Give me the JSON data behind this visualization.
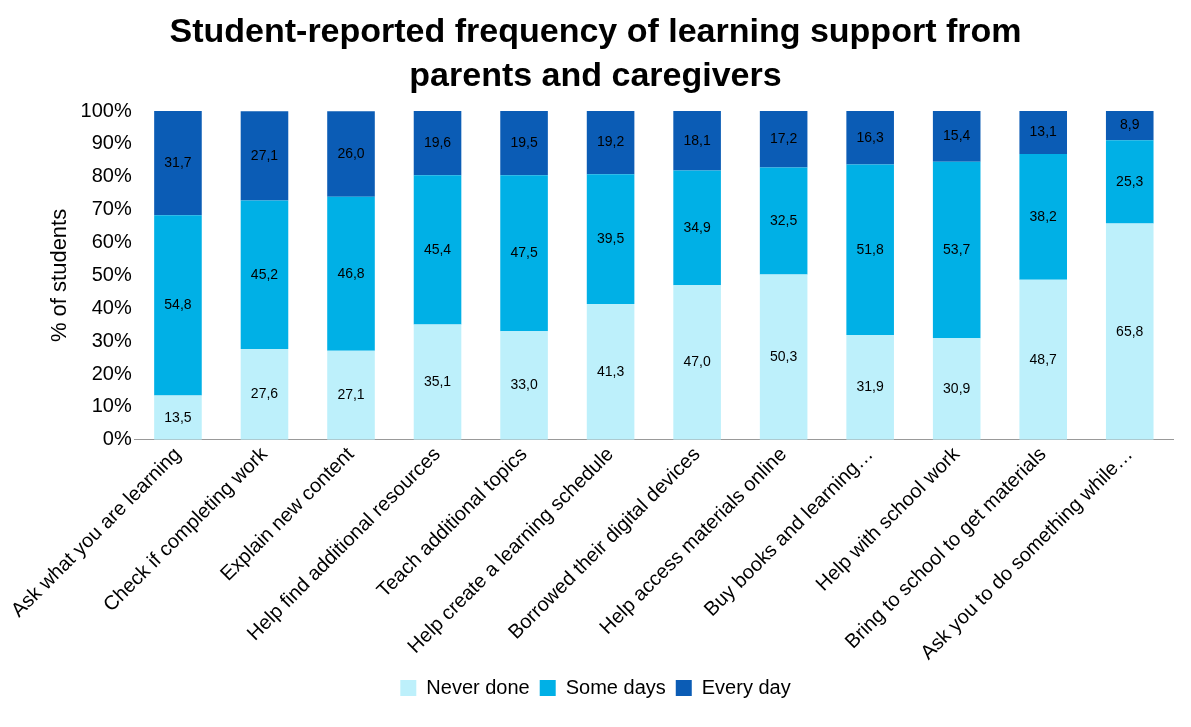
{
  "chart_data": {
    "type": "bar",
    "title": "Student-reported frequency of learning support from parents and caregivers",
    "ylabel": "% of students",
    "stacked": true,
    "legend": "bottom",
    "grid": false,
    "categories": [
      "Ask what you are learning",
      "Check if completing work",
      "Explain new content",
      "Help find additional resources",
      "Teach additional topics",
      "Help create a learning schedule",
      "Borrowed their digital devices",
      "Help access materials online",
      "Buy books and learning…",
      "Help with school work",
      "Bring to school to get materials",
      "Ask you to do something while…"
    ],
    "ylim": [
      0,
      100
    ],
    "yticks": [
      {
        "value": 0,
        "label": "0%"
      },
      {
        "value": 10,
        "label": "10%"
      },
      {
        "value": 20,
        "label": "20%"
      },
      {
        "value": 30,
        "label": "30%"
      },
      {
        "value": 40,
        "label": "40%"
      },
      {
        "value": 50,
        "label": "50%"
      },
      {
        "value": 60,
        "label": "60%"
      },
      {
        "value": 70,
        "label": "70%"
      },
      {
        "value": 80,
        "label": "80%"
      },
      {
        "value": 90,
        "label": "90%"
      },
      {
        "value": 100,
        "label": "100%"
      }
    ],
    "series": [
      {
        "name": "Never done",
        "color": "#bdf0fb",
        "values": [
          13.5,
          27.6,
          27.1,
          35.1,
          33.0,
          41.3,
          47.0,
          50.3,
          31.9,
          30.9,
          48.7,
          65.8
        ],
        "value_labels": [
          "13,5",
          "27,6",
          "27,1",
          "35,1",
          "33,0",
          "41,3",
          "47,0",
          "50,3",
          "31,9",
          "30,9",
          "48,7",
          "65,8"
        ]
      },
      {
        "name": "Some days",
        "color": "#00b0e6",
        "values": [
          54.8,
          45.2,
          46.8,
          45.4,
          47.5,
          39.5,
          34.9,
          32.5,
          51.8,
          53.7,
          38.2,
          25.3
        ],
        "value_labels": [
          "54,8",
          "45,2",
          "46,8",
          "45,4",
          "47,5",
          "39,5",
          "34,9",
          "32,5",
          "51,8",
          "53,7",
          "38,2",
          "25,3"
        ]
      },
      {
        "name": "Every day",
        "color": "#0b5cb5",
        "values": [
          31.7,
          27.1,
          26.0,
          19.6,
          19.5,
          19.2,
          18.1,
          17.2,
          16.3,
          15.4,
          13.1,
          8.9
        ],
        "value_labels": [
          "31,7",
          "27,1",
          "26,0",
          "19,6",
          "19,5",
          "19,2",
          "18,1",
          "17,2",
          "16,3",
          "15,4",
          "13,1",
          "8,9"
        ]
      }
    ]
  }
}
